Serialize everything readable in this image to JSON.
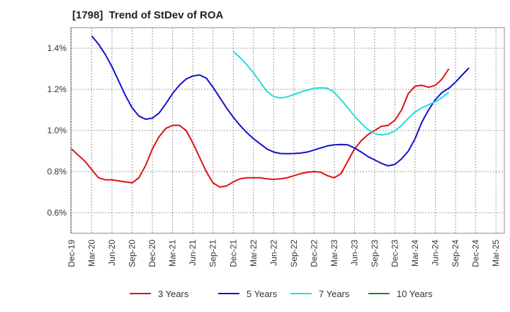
{
  "chart_data": {
    "type": "line",
    "title": "[1798]  Trend of StDev of ROA",
    "xlabel": "",
    "ylabel": "",
    "x_tick_labels": [
      "Dec-19",
      "Mar-20",
      "Jun-20",
      "Sep-20",
      "Dec-20",
      "Mar-21",
      "Jun-21",
      "Sep-21",
      "Dec-21",
      "Mar-22",
      "Jun-22",
      "Sep-22",
      "Dec-22",
      "Mar-23",
      "Jun-23",
      "Sep-23",
      "Dec-23",
      "Mar-24",
      "Jun-24",
      "Sep-24",
      "Dec-24",
      "Mar-25"
    ],
    "y_tick_labels": [
      "0.6%",
      "0.8%",
      "1.0%",
      "1.2%",
      "1.4%"
    ],
    "y_ticks": [
      0.6,
      0.8,
      1.0,
      1.2,
      1.4
    ],
    "ylim": [
      0.5,
      1.5
    ],
    "grid": true,
    "legend_position": "bottom",
    "series": [
      {
        "name": "3 Years",
        "color": "#dd1111",
        "start_index": 0,
        "values": [
          0.91,
          0.88,
          0.85,
          0.81,
          0.77,
          0.76,
          0.76,
          0.755,
          0.75,
          0.745,
          0.77,
          0.83,
          0.91,
          0.97,
          1.01,
          1.025,
          1.025,
          1.0,
          0.94,
          0.87,
          0.8,
          0.745,
          0.725,
          0.73,
          0.75,
          0.765,
          0.77,
          0.77,
          0.77,
          0.765,
          0.762,
          0.765,
          0.77,
          0.78,
          0.79,
          0.797,
          0.8,
          0.797,
          0.78,
          0.77,
          0.79,
          0.85,
          0.91,
          0.95,
          0.98,
          1.0,
          1.02,
          1.025,
          1.05,
          1.1,
          1.18,
          1.215,
          1.22,
          1.21,
          1.22,
          1.25,
          1.3
        ]
      },
      {
        "name": "5 Years",
        "color": "#1111cc",
        "start_index": 3,
        "values": [
          1.46,
          1.42,
          1.37,
          1.31,
          1.24,
          1.17,
          1.11,
          1.07,
          1.055,
          1.06,
          1.085,
          1.13,
          1.18,
          1.22,
          1.25,
          1.265,
          1.27,
          1.255,
          1.21,
          1.16,
          1.11,
          1.065,
          1.025,
          0.99,
          0.96,
          0.935,
          0.91,
          0.895,
          0.888,
          0.887,
          0.888,
          0.89,
          0.895,
          0.905,
          0.915,
          0.925,
          0.93,
          0.932,
          0.93,
          0.915,
          0.895,
          0.873,
          0.857,
          0.84,
          0.828,
          0.835,
          0.862,
          0.9,
          0.96,
          1.04,
          1.1,
          1.15,
          1.185,
          1.205,
          1.235,
          1.27,
          1.305
        ]
      },
      {
        "name": "7 Years",
        "color": "#22dddd",
        "start_index": 24,
        "values": [
          1.385,
          1.355,
          1.32,
          1.28,
          1.235,
          1.19,
          1.165,
          1.158,
          1.163,
          1.175,
          1.187,
          1.197,
          1.205,
          1.208,
          1.205,
          1.185,
          1.15,
          1.11,
          1.07,
          1.035,
          1.005,
          0.985,
          0.978,
          0.983,
          0.998,
          1.025,
          1.06,
          1.09,
          1.11,
          1.125,
          1.14,
          1.16,
          1.185
        ]
      },
      {
        "name": "10 Years",
        "color": "#228822",
        "start_index": 0,
        "values": []
      }
    ]
  }
}
